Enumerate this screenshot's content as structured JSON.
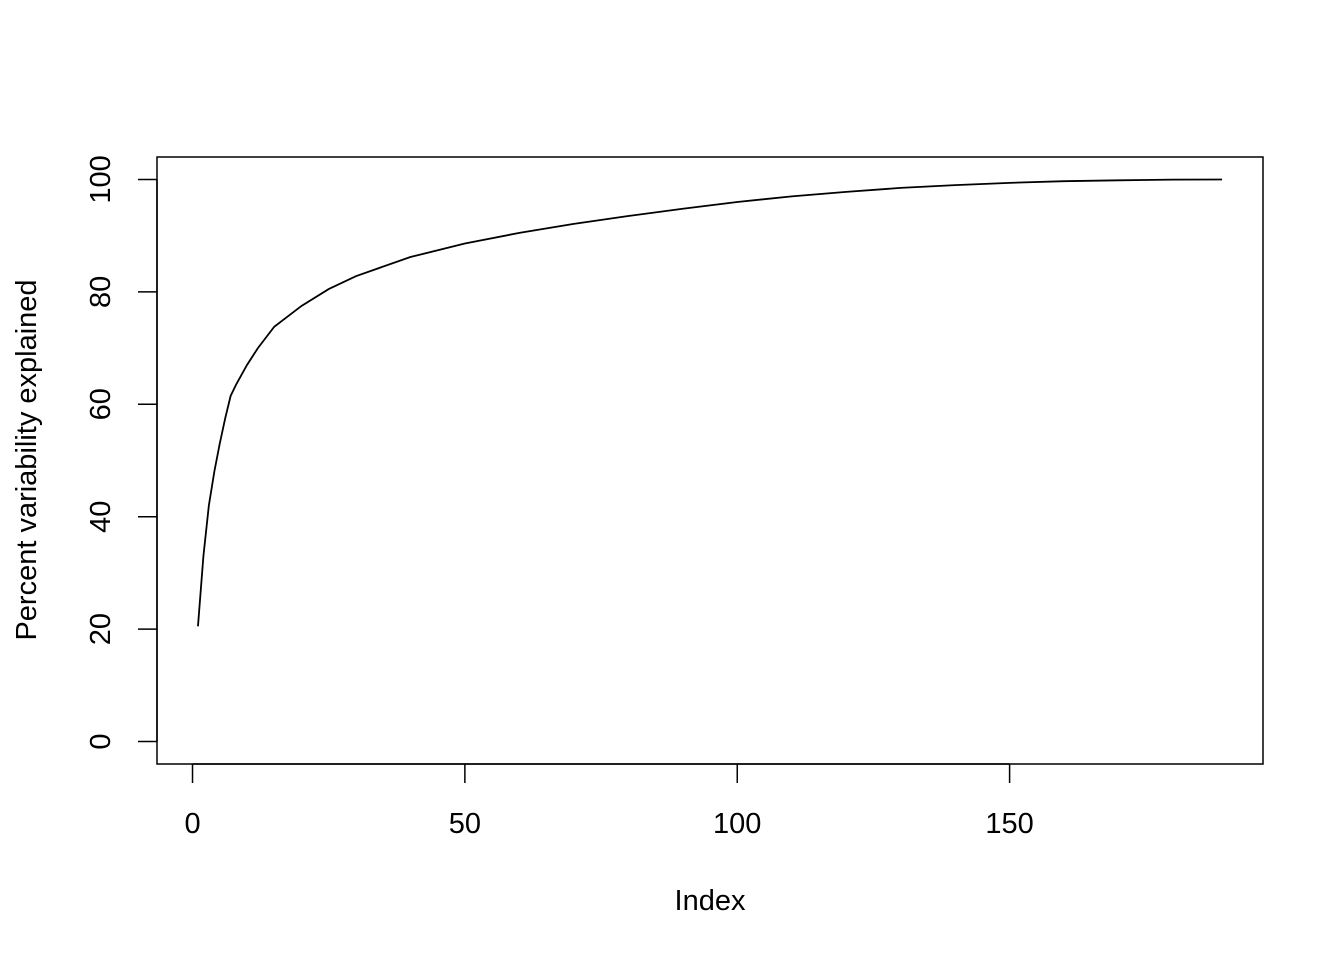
{
  "chart_data": {
    "type": "line",
    "xlabel": "Index",
    "ylabel": "Percent variability explained",
    "x": [
      1,
      2,
      3,
      4,
      5,
      6,
      7,
      8,
      10,
      12,
      15,
      20,
      25,
      30,
      40,
      50,
      60,
      70,
      80,
      90,
      100,
      110,
      120,
      130,
      140,
      150,
      160,
      170,
      180,
      189
    ],
    "series": [
      {
        "color": "#000000",
        "values": [
          20.5,
          33,
          42,
          48,
          53,
          57.5,
          61.5,
          63.5,
          67,
          70,
          73.8,
          77.5,
          80.5,
          82.8,
          86.2,
          88.6,
          90.5,
          92.1,
          93.5,
          94.8,
          96,
          97,
          97.8,
          98.5,
          99,
          99.4,
          99.7,
          99.85,
          99.97,
          100
        ]
      }
    ],
    "xlim": [
      -6.52,
      196.52
    ],
    "ylim": [
      -4,
      104
    ],
    "xticks": [
      0,
      50,
      100,
      150
    ],
    "yticks": [
      0,
      20,
      40,
      60,
      80,
      100
    ]
  }
}
